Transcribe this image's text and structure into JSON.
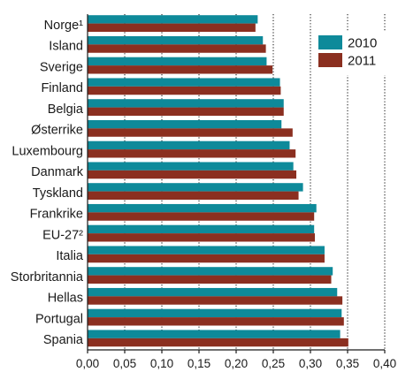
{
  "chart_data": {
    "type": "bar",
    "orientation": "horizontal",
    "categories": [
      "Norge¹",
      "Island",
      "Sverige",
      "Finland",
      "Belgia",
      "Østerrike",
      "Luxembourg",
      "Danmark",
      "Tyskland",
      "Frankrike",
      "EU-27²",
      "Italia",
      "Storbritannia",
      "Hellas",
      "Portugal",
      "Spania"
    ],
    "series": [
      {
        "name": "2010",
        "color": "#0e8a9a",
        "values": [
          0.229,
          0.236,
          0.241,
          0.259,
          0.264,
          0.261,
          0.272,
          0.277,
          0.29,
          0.308,
          0.305,
          0.319,
          0.33,
          0.336,
          0.342,
          0.34
        ]
      },
      {
        "name": "2011",
        "color": "#8b2f20",
        "values": [
          0.226,
          0.24,
          0.249,
          0.26,
          0.264,
          0.276,
          0.28,
          0.281,
          0.284,
          0.305,
          0.306,
          0.319,
          0.328,
          0.343,
          0.345,
          0.351
        ]
      }
    ],
    "xlim": [
      0,
      0.4
    ],
    "xticks": [
      "0,00",
      "0,05",
      "0,10",
      "0,15",
      "0,20",
      "0,25",
      "0,30",
      "0,35",
      "0,40"
    ],
    "grid": "vertical dotted",
    "legend": "top-right"
  }
}
